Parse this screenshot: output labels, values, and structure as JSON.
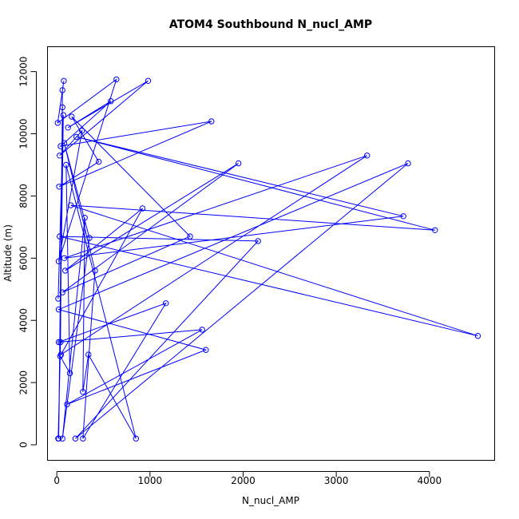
{
  "chart_data": {
    "type": "line",
    "title": "ATOM4 Southbound N_nucl_AMP",
    "xlabel": "N_nucl_AMP",
    "ylabel": "Altitude (m)",
    "xlim": [
      -100,
      4700
    ],
    "ylim": [
      -500,
      12800
    ],
    "xticks": [
      0,
      1000,
      2000,
      3000,
      4000
    ],
    "yticks": [
      0,
      2000,
      4000,
      6000,
      8000,
      10000,
      12000
    ],
    "grid": false,
    "line_color": "#0000ff",
    "marker": "open-circle",
    "series": [
      {
        "values": [
          [
            15,
            200
          ],
          [
            40,
            3300
          ],
          [
            60,
            11400
          ],
          [
            75,
            11700
          ],
          [
            10,
            10350
          ],
          [
            640,
            11750
          ],
          [
            20,
            5900
          ],
          [
            270,
            10100
          ],
          [
            30,
            9300
          ],
          [
            980,
            11700
          ],
          [
            120,
            10200
          ],
          [
            580,
            11050
          ],
          [
            40,
            9600
          ],
          [
            1660,
            10400
          ],
          [
            25,
            8300
          ],
          [
            450,
            9100
          ],
          [
            160,
            10550
          ],
          [
            1430,
            6700
          ],
          [
            60,
            4900
          ],
          [
            1950,
            9050
          ],
          [
            90,
            5600
          ],
          [
            920,
            7600
          ],
          [
            45,
            2900
          ],
          [
            3330,
            9300
          ],
          [
            80,
            6000
          ],
          [
            3720,
            7350
          ],
          [
            210,
            9900
          ],
          [
            4060,
            6900
          ],
          [
            150,
            7700
          ],
          [
            4520,
            3500
          ],
          [
            30,
            6700
          ],
          [
            2160,
            6550
          ],
          [
            200,
            200
          ],
          [
            3770,
            9050
          ],
          [
            20,
            4350
          ],
          [
            1600,
            3050
          ],
          [
            110,
            1300
          ],
          [
            1560,
            3700
          ],
          [
            20,
            3300
          ],
          [
            1170,
            4550
          ],
          [
            280,
            200
          ],
          [
            410,
            5600
          ],
          [
            80,
            9700
          ],
          [
            350,
            6650
          ],
          [
            60,
            200
          ],
          [
            300,
            7300
          ],
          [
            280,
            1700
          ],
          [
            340,
            2900
          ],
          [
            850,
            200
          ],
          [
            100,
            9000
          ],
          [
            140,
            2300
          ],
          [
            35,
            2850
          ],
          [
            60,
            10850
          ],
          [
            20,
            200
          ],
          [
            70,
            10600
          ],
          [
            15,
            4700
          ]
        ]
      }
    ]
  }
}
